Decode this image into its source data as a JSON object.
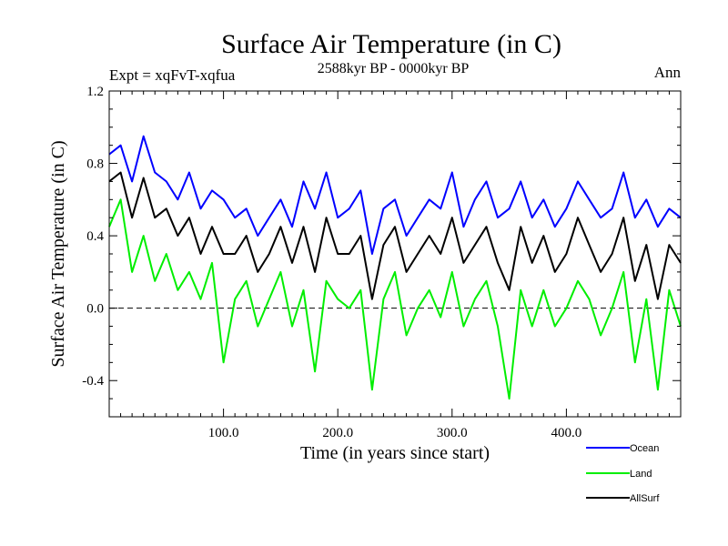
{
  "chart_data": {
    "type": "line",
    "title": "Surface Air Temperature (in C)",
    "subtitle": "2588kyr BP - 0000kyr BP",
    "left_label": "Expt = xqFvT-xqfua",
    "right_label": "Ann",
    "xlabel": "Time (in years since start)",
    "ylabel": "Surface Air Temperature (in C)",
    "xlim": [
      0,
      500
    ],
    "ylim": [
      -0.6,
      1.2
    ],
    "x_ticks": [
      100,
      200,
      300,
      400
    ],
    "x_tick_labels": [
      "100.0",
      "200.0",
      "300.0",
      "400.0"
    ],
    "y_ticks": [
      -0.4,
      0.0,
      0.4,
      0.8,
      1.2
    ],
    "y_tick_labels": [
      "-0.4",
      "0.0",
      "0.4",
      "0.8",
      "1.2"
    ],
    "zero_line": true,
    "x": [
      0,
      10,
      20,
      30,
      40,
      50,
      60,
      70,
      80,
      90,
      100,
      110,
      120,
      130,
      140,
      150,
      160,
      170,
      180,
      190,
      200,
      210,
      220,
      230,
      240,
      250,
      260,
      270,
      280,
      290,
      300,
      310,
      320,
      330,
      340,
      350,
      360,
      370,
      380,
      390,
      400,
      410,
      420,
      430,
      440,
      450,
      460,
      470,
      480,
      490,
      500
    ],
    "series": [
      {
        "name": "Ocean",
        "color": "#0000ff",
        "values": [
          0.85,
          0.9,
          0.7,
          0.95,
          0.75,
          0.7,
          0.6,
          0.75,
          0.55,
          0.65,
          0.6,
          0.5,
          0.55,
          0.4,
          0.5,
          0.6,
          0.45,
          0.7,
          0.55,
          0.75,
          0.5,
          0.55,
          0.65,
          0.3,
          0.55,
          0.6,
          0.4,
          0.5,
          0.6,
          0.55,
          0.75,
          0.45,
          0.6,
          0.7,
          0.5,
          0.55,
          0.7,
          0.5,
          0.6,
          0.45,
          0.55,
          0.7,
          0.6,
          0.5,
          0.55,
          0.75,
          0.5,
          0.6,
          0.45,
          0.55,
          0.5
        ]
      },
      {
        "name": "Land",
        "color": "#00ee00",
        "values": [
          0.45,
          0.6,
          0.2,
          0.4,
          0.15,
          0.3,
          0.1,
          0.2,
          0.05,
          0.25,
          -0.3,
          0.05,
          0.15,
          -0.1,
          0.05,
          0.2,
          -0.1,
          0.1,
          -0.35,
          0.15,
          0.05,
          0.0,
          0.1,
          -0.45,
          0.05,
          0.2,
          -0.15,
          0.0,
          0.1,
          -0.05,
          0.2,
          -0.1,
          0.05,
          0.15,
          -0.1,
          -0.5,
          0.1,
          -0.1,
          0.1,
          -0.1,
          0.0,
          0.15,
          0.05,
          -0.15,
          0.0,
          0.2,
          -0.3,
          0.05,
          -0.45,
          0.1,
          -0.1
        ]
      },
      {
        "name": "AllSurf",
        "color": "#000000",
        "values": [
          0.7,
          0.75,
          0.5,
          0.72,
          0.5,
          0.55,
          0.4,
          0.5,
          0.3,
          0.45,
          0.3,
          0.3,
          0.4,
          0.2,
          0.3,
          0.45,
          0.25,
          0.45,
          0.2,
          0.5,
          0.3,
          0.3,
          0.4,
          0.05,
          0.35,
          0.45,
          0.2,
          0.3,
          0.4,
          0.3,
          0.5,
          0.25,
          0.35,
          0.45,
          0.25,
          0.1,
          0.45,
          0.25,
          0.4,
          0.2,
          0.3,
          0.5,
          0.35,
          0.2,
          0.3,
          0.5,
          0.15,
          0.35,
          0.05,
          0.35,
          0.25
        ]
      }
    ]
  }
}
